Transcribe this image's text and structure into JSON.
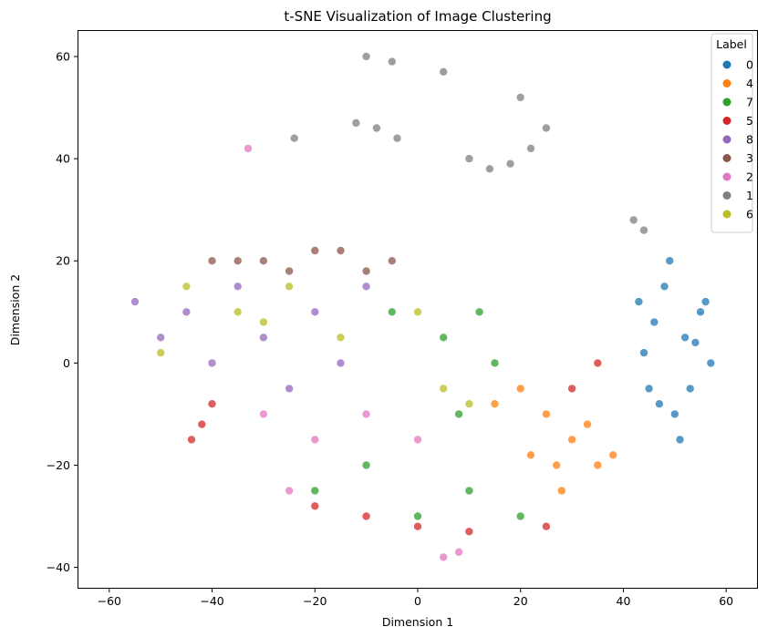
{
  "chart_data": {
    "type": "scatter",
    "title": "t-SNE Visualization of Image Clustering",
    "xlabel": "Dimension 1",
    "ylabel": "Dimension 2",
    "xlim": [
      -66,
      66
    ],
    "ylim": [
      -44,
      65
    ],
    "xticks": [
      -60,
      -40,
      -20,
      0,
      20,
      40,
      60
    ],
    "yticks": [
      -40,
      -20,
      0,
      20,
      40,
      60
    ],
    "grid": false,
    "legend": {
      "title": "Label",
      "placement": "top-right",
      "entries": [
        {
          "label": "0",
          "color": "#1f77b4"
        },
        {
          "label": "4",
          "color": "#ff7f0e"
        },
        {
          "label": "7",
          "color": "#2ca02c"
        },
        {
          "label": "5",
          "color": "#d62728"
        },
        {
          "label": "8",
          "color": "#9467bd"
        },
        {
          "label": "3",
          "color": "#8c564b"
        },
        {
          "label": "2",
          "color": "#e377c2"
        },
        {
          "label": "1",
          "color": "#7f7f7f"
        },
        {
          "label": "6",
          "color": "#bcbd22"
        }
      ]
    },
    "series": [
      {
        "name": "0",
        "color": "#1f77b4",
        "points": [
          [
            52,
            5
          ],
          [
            48,
            15
          ],
          [
            55,
            10
          ],
          [
            45,
            -5
          ],
          [
            50,
            -10
          ],
          [
            57,
            0
          ],
          [
            46,
            8
          ],
          [
            53,
            -5
          ],
          [
            49,
            20
          ],
          [
            44,
            2
          ],
          [
            51,
            -15
          ],
          [
            56,
            12
          ],
          [
            47,
            -8
          ],
          [
            54,
            4
          ],
          [
            43,
            12
          ]
        ]
      },
      {
        "name": "4",
        "color": "#ff7f0e",
        "points": [
          [
            30,
            -15
          ],
          [
            25,
            -10
          ],
          [
            35,
            -20
          ],
          [
            20,
            -5
          ],
          [
            28,
            -25
          ],
          [
            33,
            -12
          ],
          [
            15,
            -8
          ],
          [
            38,
            -18
          ],
          [
            22,
            -18
          ],
          [
            27,
            -20
          ]
        ]
      },
      {
        "name": "7",
        "color": "#2ca02c",
        "points": [
          [
            10,
            -25
          ],
          [
            -10,
            -20
          ],
          [
            15,
            0
          ],
          [
            5,
            5
          ],
          [
            -20,
            -25
          ],
          [
            20,
            -30
          ],
          [
            0,
            -30
          ],
          [
            8,
            -10
          ],
          [
            -5,
            10
          ],
          [
            12,
            10
          ]
        ]
      },
      {
        "name": "5",
        "color": "#d62728",
        "points": [
          [
            -42,
            -12
          ],
          [
            -40,
            -8
          ],
          [
            -10,
            -30
          ],
          [
            0,
            -32
          ],
          [
            10,
            -33
          ],
          [
            25,
            -32
          ],
          [
            -44,
            -15
          ],
          [
            -20,
            -28
          ],
          [
            30,
            -5
          ],
          [
            35,
            0
          ]
        ]
      },
      {
        "name": "8",
        "color": "#9467bd",
        "points": [
          [
            -45,
            10
          ],
          [
            -50,
            5
          ],
          [
            -40,
            0
          ],
          [
            -35,
            15
          ],
          [
            -55,
            12
          ],
          [
            -30,
            5
          ],
          [
            -25,
            -5
          ],
          [
            -20,
            10
          ],
          [
            -15,
            0
          ],
          [
            -10,
            15
          ]
        ]
      },
      {
        "name": "3",
        "color": "#8c564b",
        "points": [
          [
            -30,
            20
          ],
          [
            -20,
            22
          ],
          [
            -25,
            18
          ],
          [
            -35,
            20
          ],
          [
            -15,
            22
          ],
          [
            -10,
            18
          ],
          [
            -5,
            20
          ],
          [
            -40,
            20
          ]
        ]
      },
      {
        "name": "2",
        "color": "#e377c2",
        "points": [
          [
            -30,
            -10
          ],
          [
            -20,
            -15
          ],
          [
            -10,
            -10
          ],
          [
            0,
            -15
          ],
          [
            5,
            -38
          ],
          [
            8,
            -37
          ],
          [
            -33,
            42
          ],
          [
            -25,
            -25
          ]
        ]
      },
      {
        "name": "1",
        "color": "#7f7f7f",
        "points": [
          [
            -10,
            60
          ],
          [
            -5,
            59
          ],
          [
            5,
            57
          ],
          [
            -12,
            47
          ],
          [
            -8,
            46
          ],
          [
            -4,
            44
          ],
          [
            10,
            40
          ],
          [
            14,
            38
          ],
          [
            18,
            39
          ],
          [
            22,
            42
          ],
          [
            25,
            46
          ],
          [
            -24,
            44
          ],
          [
            20,
            52
          ],
          [
            42,
            28
          ],
          [
            44,
            26
          ]
        ]
      },
      {
        "name": "6",
        "color": "#bcbd22",
        "points": [
          [
            -35,
            10
          ],
          [
            -30,
            8
          ],
          [
            -25,
            15
          ],
          [
            -15,
            5
          ],
          [
            0,
            10
          ],
          [
            5,
            -5
          ],
          [
            10,
            -8
          ],
          [
            -45,
            15
          ],
          [
            -50,
            2
          ]
        ]
      }
    ]
  }
}
